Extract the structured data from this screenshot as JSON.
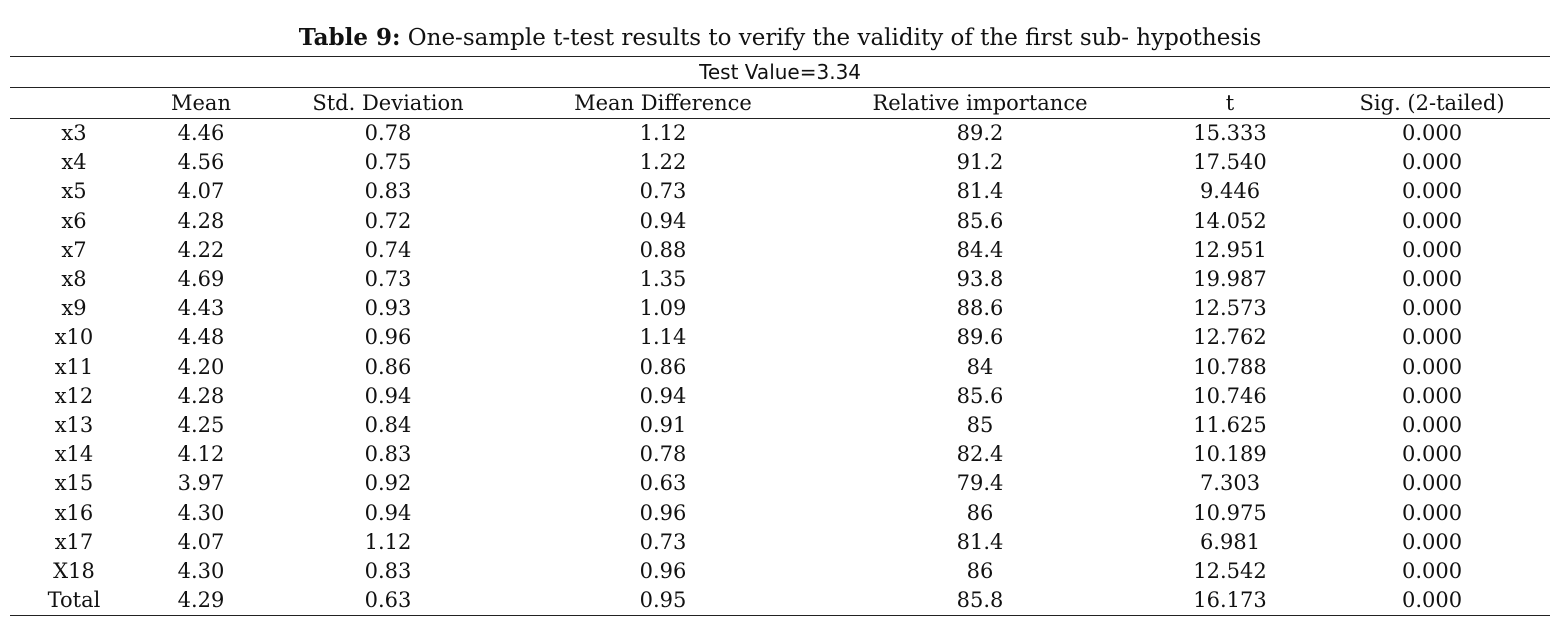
{
  "caption": {
    "label": "Table 9:",
    "text": "One-sample t-test results to verify the validity of the first sub- hypothesis"
  },
  "table": {
    "test_value_label": "Test Value=3.34",
    "headers": [
      "",
      "Mean",
      "Std. Deviation",
      "Mean Difference",
      "Relative importance",
      "t",
      "Sig. (2-tailed)"
    ],
    "rows": [
      [
        "x3",
        "4.46",
        "0.78",
        "1.12",
        "89.2",
        "15.333",
        "0.000"
      ],
      [
        "x4",
        "4.56",
        "0.75",
        "1.22",
        "91.2",
        "17.540",
        "0.000"
      ],
      [
        "x5",
        "4.07",
        "0.83",
        "0.73",
        "81.4",
        "9.446",
        "0.000"
      ],
      [
        "x6",
        "4.28",
        "0.72",
        "0.94",
        "85.6",
        "14.052",
        "0.000"
      ],
      [
        "x7",
        "4.22",
        "0.74",
        "0.88",
        "84.4",
        "12.951",
        "0.000"
      ],
      [
        "x8",
        "4.69",
        "0.73",
        "1.35",
        "93.8",
        "19.987",
        "0.000"
      ],
      [
        "x9",
        "4.43",
        "0.93",
        "1.09",
        "88.6",
        "12.573",
        "0.000"
      ],
      [
        "x10",
        "4.48",
        "0.96",
        "1.14",
        "89.6",
        "12.762",
        "0.000"
      ],
      [
        "x11",
        "4.20",
        "0.86",
        "0.86",
        "84",
        "10.788",
        "0.000"
      ],
      [
        "x12",
        "4.28",
        "0.94",
        "0.94",
        "85.6",
        "10.746",
        "0.000"
      ],
      [
        "x13",
        "4.25",
        "0.84",
        "0.91",
        "85",
        "11.625",
        "0.000"
      ],
      [
        "x14",
        "4.12",
        "0.83",
        "0.78",
        "82.4",
        "10.189",
        "0.000"
      ],
      [
        "x15",
        "3.97",
        "0.92",
        "0.63",
        "79.4",
        "7.303",
        "0.000"
      ],
      [
        "x16",
        "4.30",
        "0.94",
        "0.96",
        "86",
        "10.975",
        "0.000"
      ],
      [
        "x17",
        "4.07",
        "1.12",
        "0.73",
        "81.4",
        "6.981",
        "0.000"
      ],
      [
        "X18",
        "4.30",
        "0.83",
        "0.96",
        "86",
        "12.542",
        "0.000"
      ],
      [
        "Total",
        "4.29",
        "0.63",
        "0.95",
        "85.8",
        "16.173",
        "0.000"
      ]
    ]
  }
}
